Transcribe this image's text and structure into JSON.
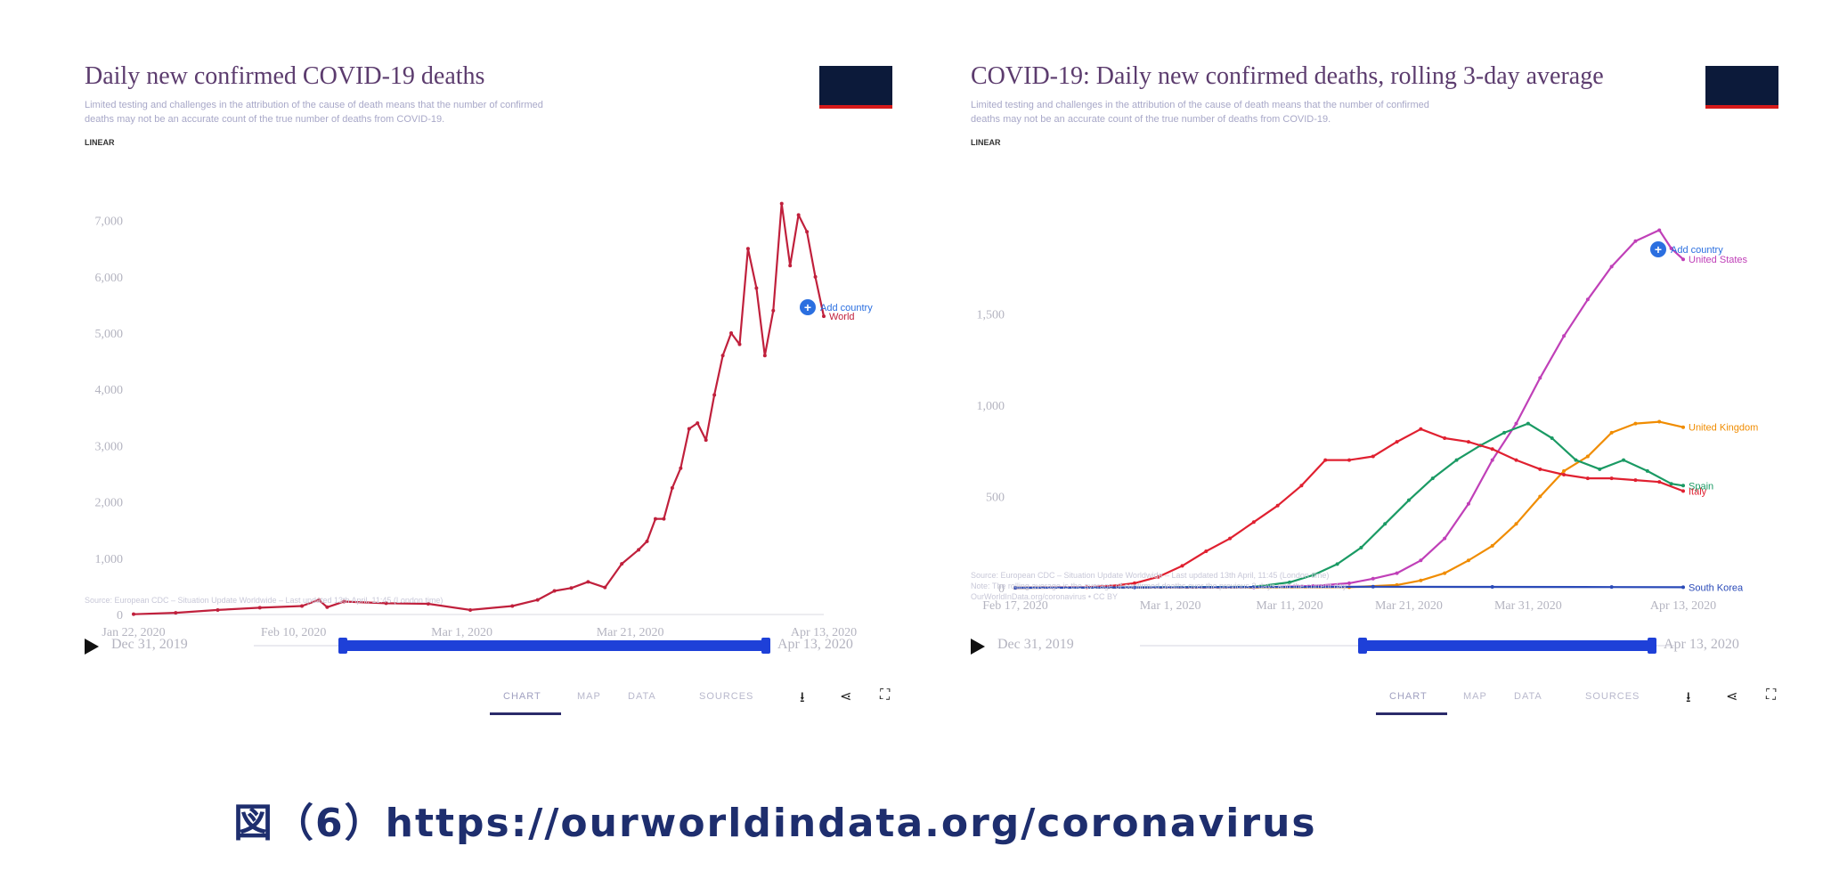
{
  "caption": "図（6）https://ourworldindata.org/coronavirus",
  "charts": [
    {
      "title": "Daily new confirmed COVID-19 deaths",
      "subtitle_line1": "Limited testing and challenges in the attribution of the cause of death means that the number of confirmed",
      "subtitle_line2": "deaths may not be an accurate count of the true number of deaths from COVID-19.",
      "scale_label": "LINEAR",
      "source_line1": "Source: European CDC – Situation Update Worldwide – Last updated 13th April, 11:45 (London time)",
      "timeline_start": "Dec 31, 2019",
      "timeline_end": "Apr 13, 2020",
      "tabs": [
        "CHART",
        "MAP",
        "DATA",
        "SOURCES"
      ],
      "add_country": "Add country",
      "icon_names": [
        "download-icon",
        "share-icon",
        "expand-icon"
      ]
    },
    {
      "title": "COVID-19: Daily new confirmed deaths, rolling 3-day average",
      "subtitle_line1": "Limited testing and challenges in the attribution of the cause of death means that the number of confirmed",
      "subtitle_line2": "deaths may not be an accurate count of the true number of deaths from COVID-19.",
      "scale_label": "LINEAR",
      "source_line1": "Source: European CDC – Situation Update Worldwide – Last updated 13th April, 11:45 (London time)",
      "source_line2": "Note: The rolling average is the average of confirmed deaths over the previous 3 days and the current day.",
      "source_line3": "OurWorldInData.org/coronavirus • CC BY",
      "timeline_start": "Dec 31, 2019",
      "timeline_end": "Apr 13, 2020",
      "tabs": [
        "CHART",
        "MAP",
        "DATA",
        "SOURCES"
      ],
      "add_country": "Add country",
      "icon_names": [
        "download-icon",
        "share-icon",
        "expand-icon"
      ]
    }
  ],
  "chart_data": [
    {
      "type": "line",
      "title": "Daily new confirmed COVID-19 deaths",
      "xlabel": "",
      "ylabel": "",
      "x_tick_labels": [
        "Jan 22, 2020",
        "Feb 10, 2020",
        "Mar 1, 2020",
        "Mar 21, 2020",
        "Apr 13, 2020"
      ],
      "x_tick_days": [
        0,
        19,
        39,
        59,
        82
      ],
      "y_ticks": [
        0,
        1000,
        2000,
        3000,
        4000,
        5000,
        6000,
        7000
      ],
      "y_tick_labels": [
        "0",
        "1,000",
        "2,000",
        "3,000",
        "4,000",
        "5,000",
        "6,000",
        "7,000"
      ],
      "ylim": [
        0,
        7200
      ],
      "xlim": [
        0,
        82
      ],
      "grid": false,
      "series": [
        {
          "name": "World",
          "color": "#c0203c",
          "x": [
            0,
            5,
            10,
            15,
            20,
            22,
            23,
            25,
            30,
            35,
            40,
            45,
            48,
            50,
            52,
            54,
            56,
            58,
            60,
            61,
            62,
            63,
            64,
            65,
            66,
            67,
            68,
            69,
            70,
            71,
            72,
            73,
            74,
            75,
            76,
            77,
            78,
            79,
            80,
            81,
            82
          ],
          "y": [
            5,
            30,
            80,
            120,
            150,
            260,
            130,
            230,
            200,
            190,
            80,
            150,
            260,
            420,
            470,
            580,
            480,
            900,
            1150,
            1300,
            1700,
            1700,
            2250,
            2600,
            3300,
            3400,
            3100,
            3900,
            4600,
            5000,
            4800,
            6500,
            5800,
            4600,
            5400,
            7300,
            6200,
            7100,
            6800,
            6000,
            5300
          ]
        }
      ]
    },
    {
      "type": "line",
      "title": "COVID-19: Daily new confirmed deaths, rolling 3-day average",
      "xlabel": "",
      "ylabel": "",
      "x_tick_labels": [
        "Feb 17, 2020",
        "Mar 1, 2020",
        "Mar 11, 2020",
        "Mar 21, 2020",
        "Mar 31, 2020",
        "Apr 13, 2020"
      ],
      "x_tick_days": [
        0,
        13,
        23,
        33,
        43,
        56
      ],
      "y_ticks": [
        0,
        500,
        1000,
        1500
      ],
      "y_tick_labels": [
        "0",
        "500",
        "1,000",
        "1,500"
      ],
      "ylim": [
        0,
        2050
      ],
      "xlim": [
        0,
        56
      ],
      "grid": false,
      "series": [
        {
          "name": "United States",
          "color": "#c040b8",
          "x": [
            0,
            20,
            25,
            28,
            30,
            32,
            34,
            36,
            38,
            40,
            42,
            44,
            46,
            48,
            50,
            52,
            54,
            55,
            56
          ],
          "y": [
            0,
            2,
            10,
            25,
            50,
            80,
            150,
            270,
            460,
            700,
            900,
            1150,
            1380,
            1580,
            1760,
            1900,
            1960,
            1860,
            1800
          ]
        },
        {
          "name": "United Kingdom",
          "color": "#f08c00",
          "x": [
            0,
            28,
            32,
            34,
            36,
            38,
            40,
            42,
            44,
            46,
            48,
            50,
            52,
            54,
            56
          ],
          "y": [
            0,
            3,
            15,
            40,
            80,
            150,
            230,
            350,
            500,
            640,
            720,
            850,
            900,
            910,
            880
          ]
        },
        {
          "name": "Spain",
          "color": "#1a9a64",
          "x": [
            0,
            20,
            23,
            25,
            27,
            29,
            31,
            33,
            35,
            37,
            39,
            41,
            43,
            45,
            47,
            49,
            51,
            53,
            55,
            56
          ],
          "y": [
            0,
            5,
            30,
            70,
            130,
            220,
            350,
            480,
            600,
            700,
            780,
            850,
            900,
            820,
            700,
            650,
            700,
            640,
            570,
            560
          ]
        },
        {
          "name": "Italy",
          "color": "#e02030",
          "x": [
            0,
            6,
            8,
            10,
            12,
            14,
            16,
            18,
            20,
            22,
            24,
            26,
            28,
            30,
            32,
            34,
            36,
            38,
            40,
            42,
            44,
            46,
            48,
            50,
            52,
            54,
            56
          ],
          "y": [
            0,
            3,
            10,
            25,
            60,
            120,
            200,
            270,
            360,
            450,
            560,
            700,
            700,
            720,
            800,
            870,
            820,
            800,
            760,
            700,
            650,
            620,
            600,
            600,
            590,
            580,
            530
          ]
        },
        {
          "name": "South Korea",
          "color": "#2a4ab8",
          "x": [
            0,
            10,
            20,
            30,
            40,
            50,
            56
          ],
          "y": [
            0,
            2,
            4,
            6,
            5,
            4,
            3
          ]
        }
      ]
    }
  ]
}
